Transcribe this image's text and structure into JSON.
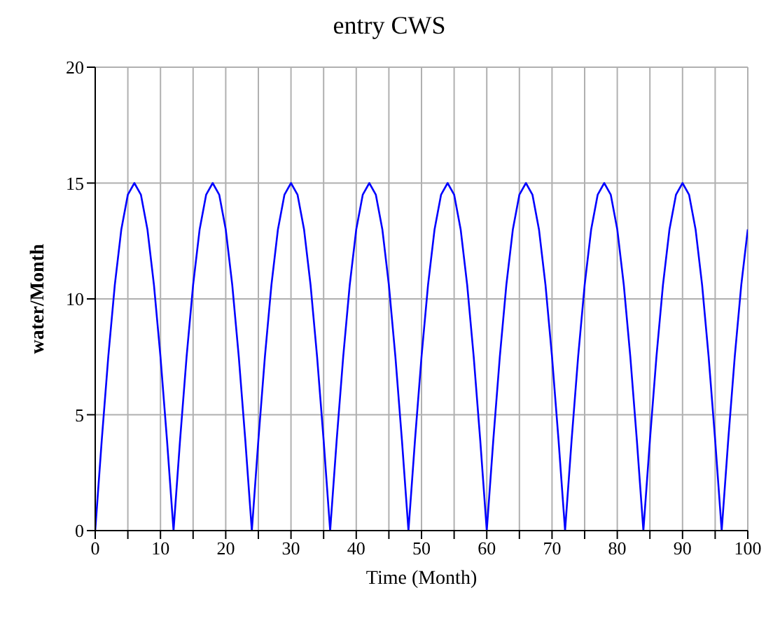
{
  "chart_data": {
    "type": "line",
    "title": "entry CWS",
    "xlabel": "Time (Month)",
    "ylabel": "water/Month",
    "x": [
      0,
      1,
      2,
      3,
      4,
      5,
      6,
      7,
      8,
      9,
      10,
      11,
      12,
      13,
      14,
      15,
      16,
      17,
      18,
      19,
      20,
      21,
      22,
      23,
      24,
      25,
      26,
      27,
      28,
      29,
      30,
      31,
      32,
      33,
      34,
      35,
      36,
      37,
      38,
      39,
      40,
      41,
      42,
      43,
      44,
      45,
      46,
      47,
      48,
      49,
      50,
      51,
      52,
      53,
      54,
      55,
      56,
      57,
      58,
      59,
      60,
      61,
      62,
      63,
      64,
      65,
      66,
      67,
      68,
      69,
      70,
      71,
      72,
      73,
      74,
      75,
      76,
      77,
      78,
      79,
      80,
      81,
      82,
      83,
      84,
      85,
      86,
      87,
      88,
      89,
      90,
      91,
      92,
      93,
      94,
      95,
      96,
      97,
      98,
      99,
      100
    ],
    "series": [
      {
        "color": "#0000ff",
        "values": [
          0,
          3.9,
          7.5,
          10.6,
          13,
          14.5,
          15,
          14.5,
          13,
          10.6,
          7.5,
          3.9,
          0,
          3.9,
          7.5,
          10.6,
          13,
          14.5,
          15,
          14.5,
          13,
          10.6,
          7.5,
          3.9,
          0,
          3.9,
          7.5,
          10.6,
          13,
          14.5,
          15,
          14.5,
          13,
          10.6,
          7.5,
          3.9,
          0,
          3.9,
          7.5,
          10.6,
          13,
          14.5,
          15,
          14.5,
          13,
          10.6,
          7.5,
          3.9,
          0,
          3.9,
          7.5,
          10.6,
          13,
          14.5,
          15,
          14.5,
          13,
          10.6,
          7.5,
          3.9,
          0,
          3.9,
          7.5,
          10.6,
          13,
          14.5,
          15,
          14.5,
          13,
          10.6,
          7.5,
          3.9,
          0,
          3.9,
          7.5,
          10.6,
          13,
          14.5,
          15,
          14.5,
          13,
          10.6,
          7.5,
          3.9,
          0,
          3.9,
          7.5,
          10.6,
          13,
          14.5,
          15,
          14.5,
          13,
          10.6,
          7.5,
          3.9,
          0,
          3.9,
          7.5,
          10.6,
          13
        ]
      }
    ],
    "xlim": [
      0,
      100
    ],
    "xticks": [
      0,
      {
        "value": 5,
        "label": null
      },
      10,
      {
        "value": 15,
        "label": null
      },
      20,
      {
        "value": 25,
        "label": null
      },
      30,
      {
        "value": 35,
        "label": null
      },
      40,
      {
        "value": 45,
        "label": null
      },
      50,
      {
        "value": 55,
        "label": null
      },
      60,
      {
        "value": 65,
        "label": null
      },
      70,
      {
        "value": 75,
        "label": null
      },
      80,
      {
        "value": 85,
        "label": null
      },
      90,
      {
        "value": 95,
        "label": null
      },
      100
    ],
    "ylim": [
      0,
      20
    ],
    "yticks": [
      0,
      5,
      10,
      15,
      20
    ],
    "grid": true,
    "marker": "none",
    "line_style": "solid"
  }
}
